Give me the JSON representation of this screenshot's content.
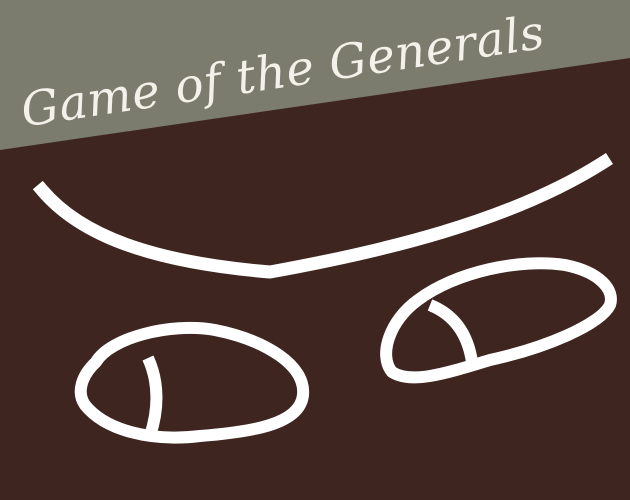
{
  "title": "Game of the Generals",
  "colors": {
    "banner": "#7b7c6e",
    "background": "#3e2520",
    "line": "#ffffff",
    "title_text": "#f4f1ea"
  },
  "artwork": {
    "subject": "pixel-art face with brow and two eyes",
    "icon": "generals-face-logo"
  }
}
